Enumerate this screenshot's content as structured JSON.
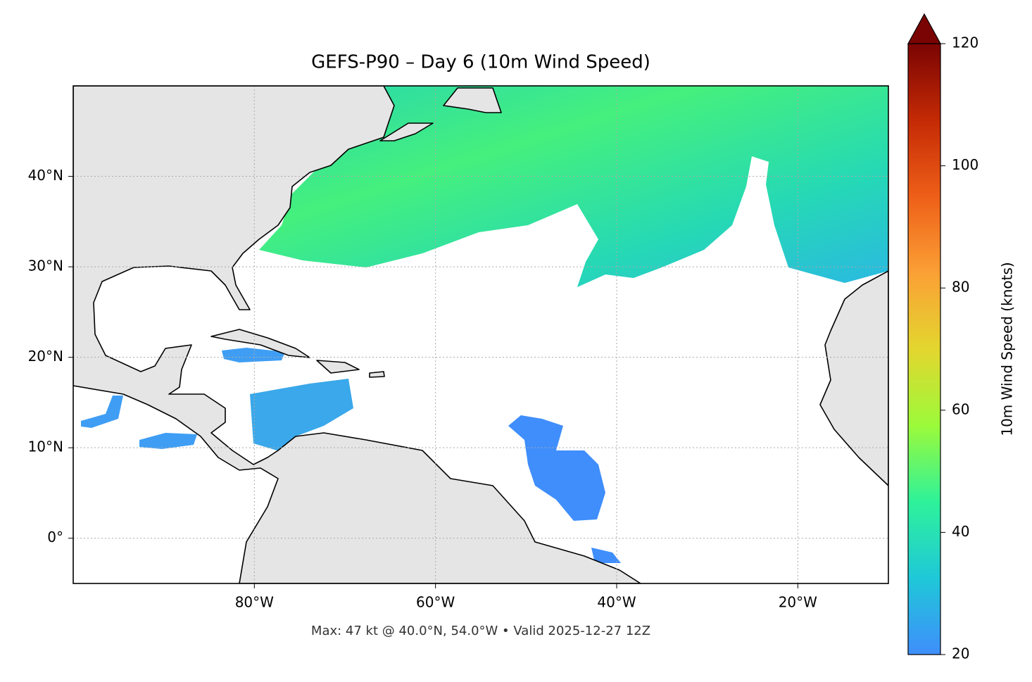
{
  "chart_data": {
    "type": "map",
    "title": "GEFS-P90 – Day 6 (10m Wind Speed)",
    "footnote": "Max: 47 kt @ 40.0°N, 54.0°W • Valid 2025-12-27 12Z",
    "xlim": [
      -100,
      -10
    ],
    "ylim": [
      -5,
      50
    ],
    "xticks": [
      {
        "value": -80,
        "label": "80°W"
      },
      {
        "value": -60,
        "label": "60°W"
      },
      {
        "value": -40,
        "label": "40°W"
      },
      {
        "value": -20,
        "label": "20°W"
      }
    ],
    "yticks": [
      {
        "value": 0,
        "label": "0°"
      },
      {
        "value": 10,
        "label": "10°N"
      },
      {
        "value": 20,
        "label": "20°N"
      },
      {
        "value": 30,
        "label": "30°N"
      },
      {
        "value": 40,
        "label": "40°N"
      }
    ],
    "grid": true,
    "colorbar": {
      "label": "10m Wind Speed (knots)",
      "lim": [
        20,
        120
      ],
      "ticks": [
        20,
        40,
        60,
        80,
        100,
        120
      ],
      "colors": [
        "#3f8efc",
        "#1fc8d8",
        "#2ef29a",
        "#9cfa3a",
        "#e3d62f",
        "#fba035",
        "#ee5f18",
        "#c42a05",
        "#7a0403"
      ]
    }
  }
}
